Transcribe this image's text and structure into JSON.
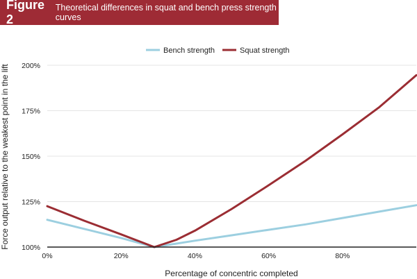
{
  "figure": {
    "label": "Figure 2",
    "title": "Theoretical differences in squat and bench press strength curves"
  },
  "colors": {
    "banner_bg": "#9e2b35",
    "banner_text": "#ffffff",
    "bench": "#9ccfe0",
    "squat": "#9b2d33",
    "grid": "#e4e4e4",
    "baseline": "#222222"
  },
  "chart_data": {
    "type": "line",
    "title": "Theoretical differences in squat and bench press strength curves",
    "xlabel": "Percentage of concentric completed",
    "ylabel": "Force output relative to the weakest point in the lift",
    "xlim": [
      0,
      100
    ],
    "ylim": [
      100,
      200
    ],
    "x_ticks": [
      0,
      20,
      40,
      60,
      80
    ],
    "x_tick_labels": [
      "0%",
      "20%",
      "40%",
      "60%",
      "80%"
    ],
    "y_ticks": [
      100,
      125,
      150,
      175,
      200
    ],
    "y_tick_labels": [
      "100%",
      "125%",
      "150%",
      "175%",
      "200%"
    ],
    "grid": "horizontal",
    "legend_position": "top-center",
    "series": [
      {
        "name": "Bench strength",
        "x": [
          0,
          10,
          20,
          29,
          40,
          50,
          60,
          70,
          80,
          90,
          100
        ],
        "y": [
          115,
          110,
          105,
          100,
          103.5,
          106.5,
          109.5,
          112.5,
          116,
          119.5,
          123
        ]
      },
      {
        "name": "Squat strength",
        "x": [
          0,
          10,
          20,
          29,
          35,
          40,
          50,
          60,
          70,
          80,
          90,
          100
        ],
        "y": [
          122.5,
          114.5,
          107,
          100,
          104,
          109,
          121,
          134,
          147.5,
          162,
          177,
          194.5
        ]
      }
    ]
  }
}
